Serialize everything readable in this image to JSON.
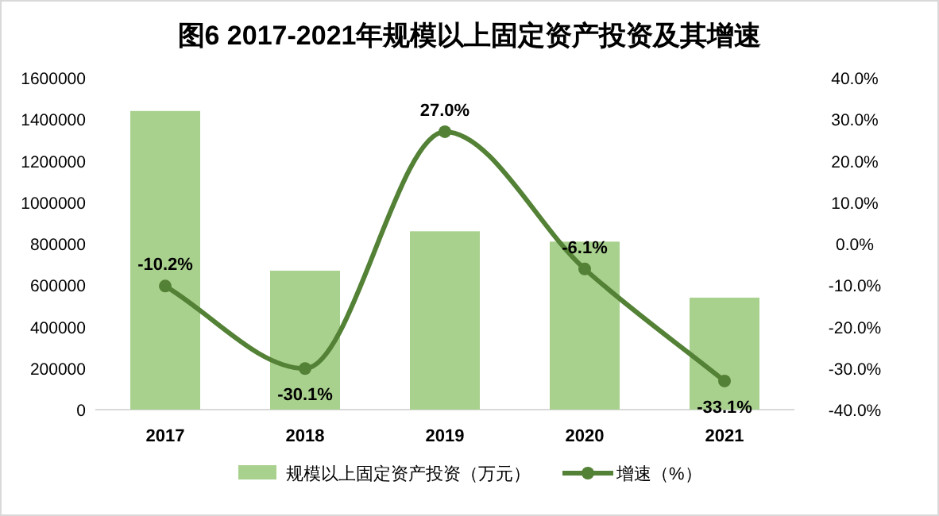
{
  "chart_data": {
    "type": "bar",
    "title": "图6  2017-2021年规模以上固定资产投资及其增速",
    "categories": [
      "2017",
      "2018",
      "2019",
      "2020",
      "2021"
    ],
    "series": [
      {
        "name": "规模以上固定资产投资（万元）",
        "color": "#a9d18e",
        "values": [
          1440000,
          670000,
          860000,
          810000,
          540000
        ]
      },
      {
        "name": "增速（%）",
        "type": "line",
        "axis": "y2",
        "color": "#538135",
        "values": [
          -10.2,
          -30.1,
          27.0,
          -6.1,
          -33.1
        ],
        "value_labels": [
          "-10.2%",
          "-30.1%",
          "27.0%",
          "-6.1%",
          "-33.1%"
        ]
      }
    ],
    "ylim": [
      0,
      1600000
    ],
    "yticks": [
      0,
      200000,
      400000,
      600000,
      800000,
      1000000,
      1200000,
      1400000,
      1600000
    ],
    "y2lim": [
      -40,
      40
    ],
    "y2ticks": [
      {
        "value": -40,
        "label": "-40.0%"
      },
      {
        "value": -30,
        "label": "-30.0%"
      },
      {
        "value": -20,
        "label": "-20.0%"
      },
      {
        "value": -10,
        "label": "-10.0%"
      },
      {
        "value": 0,
        "label": "0.0%"
      },
      {
        "value": 10,
        "label": "10.0%"
      },
      {
        "value": 20,
        "label": "20.0%"
      },
      {
        "value": 30,
        "label": "30.0%"
      },
      {
        "value": 40,
        "label": "40.0%"
      }
    ],
    "marker": "circle",
    "line_style": "solid",
    "legend": "bottom",
    "grid": false
  }
}
